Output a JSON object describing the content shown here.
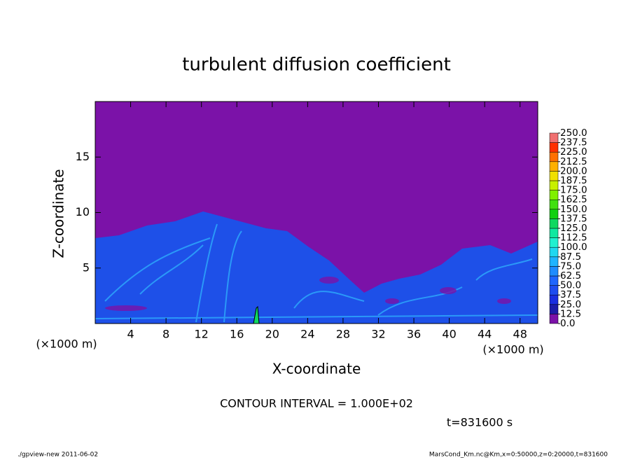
{
  "chart_data": {
    "type": "heatmap",
    "title": "turbulent diffusion coefficient",
    "xlabel": "X-coordinate",
    "ylabel": "Z-coordinate",
    "unit_label": "(×1000 m)",
    "xlim": [
      0,
      50
    ],
    "ylim": [
      0,
      20
    ],
    "xticks": [
      4,
      8,
      12,
      16,
      20,
      24,
      28,
      32,
      36,
      40,
      44,
      48
    ],
    "yticks": [
      5,
      10,
      15
    ],
    "colorbar": {
      "levels": [
        {
          "value": 0,
          "label": "0.0"
        },
        {
          "value": 12.5,
          "label": "12.5"
        },
        {
          "value": 25,
          "label": "25.0"
        },
        {
          "value": 37.5,
          "label": "37.5"
        },
        {
          "value": 50,
          "label": "50.0"
        },
        {
          "value": 62.5,
          "label": "62.5"
        },
        {
          "value": 75,
          "label": "75.0"
        },
        {
          "value": 87.5,
          "label": "87.5"
        },
        {
          "value": 100,
          "label": "100.0"
        },
        {
          "value": 112.5,
          "label": "112.5"
        },
        {
          "value": 125,
          "label": "125.0"
        },
        {
          "value": 137.5,
          "label": "137.5"
        },
        {
          "value": 150,
          "label": "150.0"
        },
        {
          "value": 162.5,
          "label": "162.5"
        },
        {
          "value": 175,
          "label": "175.0"
        },
        {
          "value": 187.5,
          "label": "187.5"
        },
        {
          "value": 200,
          "label": "200.0"
        },
        {
          "value": 212.5,
          "label": "212.5"
        },
        {
          "value": 225,
          "label": "225.0"
        },
        {
          "value": 237.5,
          "label": "237.5"
        },
        {
          "value": 250,
          "label": "250.0"
        }
      ],
      "colors": [
        "#7b12a8",
        "#1c1ca8",
        "#1a2ee0",
        "#1e4cf0",
        "#1f66ff",
        "#1f8cff",
        "#20b4ff",
        "#20d8f0",
        "#20f0d0",
        "#10e8a0",
        "#10d860",
        "#10d010",
        "#40e010",
        "#80f000",
        "#c8f000",
        "#f0e000",
        "#ffb000",
        "#ff7000",
        "#ff3000",
        "#f07070"
      ]
    },
    "annotation": "CONTOUR INTERVAL = 1.000E+02",
    "time_label": "t=831600 s",
    "footer_left": "./gpview-new  2011-06-02",
    "footer_right": "MarsCond_Km.nc@Km,x=0:50000,z=0:20000,t=831600"
  }
}
